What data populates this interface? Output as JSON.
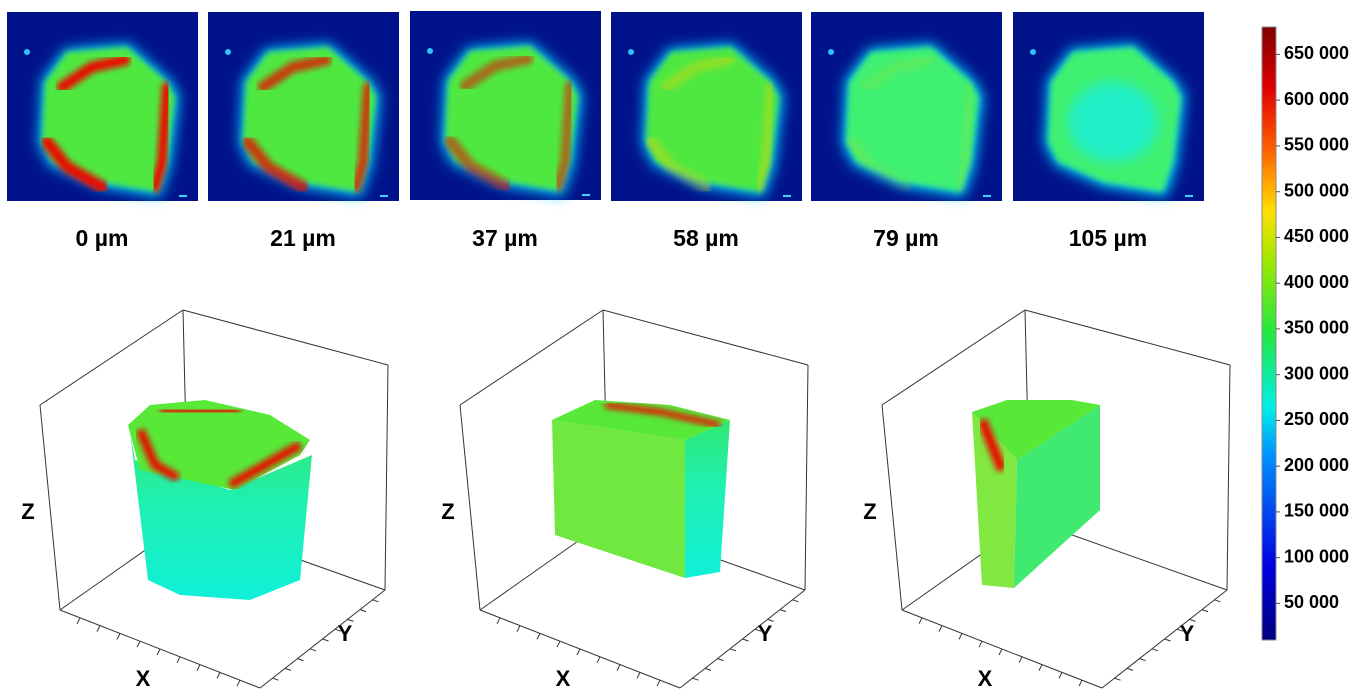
{
  "panels": [
    {
      "label": "0 µm"
    },
    {
      "label": "21 µm"
    },
    {
      "label": "37 µm"
    },
    {
      "label": "58 µm"
    },
    {
      "label": "79 µm"
    },
    {
      "label": "105 µm"
    }
  ],
  "views": [
    {
      "x": "X",
      "y": "Y",
      "z": "Z"
    },
    {
      "x": "X",
      "y": "Y",
      "z": "Z"
    },
    {
      "x": "X",
      "y": "Y",
      "z": "Z"
    }
  ],
  "colorbar": {
    "lim": [
      10000,
      680000
    ],
    "ticks": [
      {
        "value": 50000,
        "label": "50 000"
      },
      {
        "value": 100000,
        "label": "100 000"
      },
      {
        "value": 150000,
        "label": "150 000"
      },
      {
        "value": 200000,
        "label": "200 000"
      },
      {
        "value": 250000,
        "label": "250 000"
      },
      {
        "value": 300000,
        "label": "300 000"
      },
      {
        "value": 350000,
        "label": "350 000"
      },
      {
        "value": 400000,
        "label": "400 000"
      },
      {
        "value": 450000,
        "label": "450 000"
      },
      {
        "value": 500000,
        "label": "500 000"
      },
      {
        "value": 550000,
        "label": "550 000"
      },
      {
        "value": 600000,
        "label": "600 000"
      },
      {
        "value": 650000,
        "label": "650 000"
      }
    ]
  }
}
